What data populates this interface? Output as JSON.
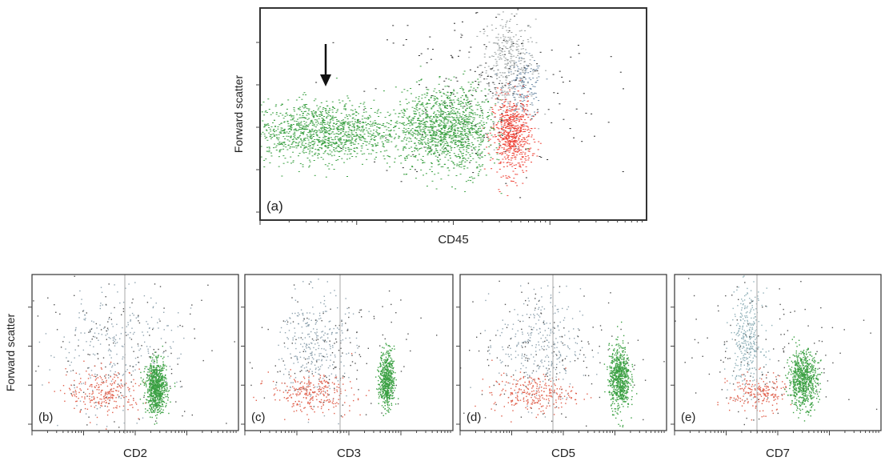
{
  "chart_data": [
    {
      "type": "scatter",
      "panel_label": "(a)",
      "xlabel": "CD45",
      "ylabel": "Forward scatter",
      "x_scale": "log",
      "annotation": "arrow pointing to the low-CD45 green population",
      "grid": false,
      "series": [
        {
          "color": "#3aa042",
          "clusters": [
            {
              "cx": 0.16,
              "cy": 0.42,
              "sx": 0.1,
              "sy": 0.07,
              "n": 1300
            },
            {
              "cx": 0.43,
              "cy": 0.43,
              "sx": 0.04,
              "sy": 0.09,
              "n": 550
            },
            {
              "cx": 0.52,
              "cy": 0.43,
              "sx": 0.04,
              "sy": 0.1,
              "n": 750
            }
          ]
        },
        {
          "color": "#ee4438",
          "clusters": [
            {
              "cx": 0.65,
              "cy": 0.4,
              "sx": 0.025,
              "sy": 0.09,
              "n": 650
            }
          ]
        },
        {
          "color": "#9aa0a0",
          "clusters": [
            {
              "cx": 0.64,
              "cy": 0.74,
              "sx": 0.035,
              "sy": 0.12,
              "n": 380
            }
          ]
        },
        {
          "color": "#6e8aa5",
          "clusters": [
            {
              "cx": 0.68,
              "cy": 0.62,
              "sx": 0.025,
              "sy": 0.07,
              "n": 150
            }
          ]
        },
        {
          "color": "#2a2a2a",
          "clusters": [
            {
              "cx": 0.58,
              "cy": 0.6,
              "sx": 0.15,
              "sy": 0.22,
              "n": 200
            }
          ]
        }
      ]
    },
    {
      "type": "scatter",
      "panel_label": "(b)",
      "xlabel": "CD2",
      "ylabel": "Forward scatter",
      "x_scale": "log",
      "grid": false,
      "series": [
        {
          "color": "#3aa042",
          "clusters": [
            {
              "cx": 0.6,
              "cy": 0.28,
              "sx": 0.025,
              "sy": 0.08,
              "n": 800
            }
          ]
        },
        {
          "color": "#e0604c",
          "clusters": [
            {
              "cx": 0.35,
              "cy": 0.25,
              "sx": 0.09,
              "sy": 0.07,
              "n": 240
            }
          ]
        },
        {
          "color": "#90a4b0",
          "clusters": [
            {
              "cx": 0.38,
              "cy": 0.52,
              "sx": 0.16,
              "sy": 0.2,
              "n": 260
            }
          ]
        },
        {
          "color": "#555555",
          "clusters": [
            {
              "cx": 0.45,
              "cy": 0.5,
              "sx": 0.25,
              "sy": 0.25,
              "n": 150
            }
          ]
        }
      ]
    },
    {
      "type": "scatter",
      "panel_label": "(c)",
      "xlabel": "CD3",
      "ylabel": "",
      "x_scale": "log",
      "grid": false,
      "series": [
        {
          "color": "#3aa042",
          "clusters": [
            {
              "cx": 0.68,
              "cy": 0.33,
              "sx": 0.018,
              "sy": 0.09,
              "n": 550
            }
          ]
        },
        {
          "color": "#e0604c",
          "clusters": [
            {
              "cx": 0.32,
              "cy": 0.24,
              "sx": 0.1,
              "sy": 0.06,
              "n": 260
            }
          ]
        },
        {
          "color": "#90a4b0",
          "clusters": [
            {
              "cx": 0.33,
              "cy": 0.55,
              "sx": 0.08,
              "sy": 0.18,
              "n": 300
            }
          ]
        },
        {
          "color": "#555555",
          "clusters": [
            {
              "cx": 0.4,
              "cy": 0.5,
              "sx": 0.22,
              "sy": 0.25,
              "n": 150
            }
          ]
        }
      ]
    },
    {
      "type": "scatter",
      "panel_label": "(d)",
      "xlabel": "CD5",
      "ylabel": "",
      "x_scale": "log",
      "grid": false,
      "series": [
        {
          "color": "#3aa042",
          "clusters": [
            {
              "cx": 0.77,
              "cy": 0.34,
              "sx": 0.025,
              "sy": 0.1,
              "n": 700
            }
          ]
        },
        {
          "color": "#e0604c",
          "clusters": [
            {
              "cx": 0.35,
              "cy": 0.24,
              "sx": 0.1,
              "sy": 0.06,
              "n": 260
            }
          ]
        },
        {
          "color": "#90a4b0",
          "clusters": [
            {
              "cx": 0.38,
              "cy": 0.55,
              "sx": 0.1,
              "sy": 0.18,
              "n": 300
            }
          ]
        },
        {
          "color": "#555555",
          "clusters": [
            {
              "cx": 0.45,
              "cy": 0.5,
              "sx": 0.25,
              "sy": 0.25,
              "n": 150
            }
          ]
        }
      ]
    },
    {
      "type": "scatter",
      "panel_label": "(e)",
      "xlabel": "CD7",
      "ylabel": "",
      "x_scale": "log",
      "grid": false,
      "series": [
        {
          "color": "#3aa042",
          "clusters": [
            {
              "cx": 0.62,
              "cy": 0.33,
              "sx": 0.035,
              "sy": 0.09,
              "n": 700
            }
          ]
        },
        {
          "color": "#e0604c",
          "clusters": [
            {
              "cx": 0.4,
              "cy": 0.24,
              "sx": 0.07,
              "sy": 0.06,
              "n": 200
            }
          ]
        },
        {
          "color": "#8fb0b8",
          "clusters": [
            {
              "cx": 0.35,
              "cy": 0.58,
              "sx": 0.04,
              "sy": 0.16,
              "n": 330
            }
          ]
        },
        {
          "color": "#555555",
          "clusters": [
            {
              "cx": 0.45,
              "cy": 0.5,
              "sx": 0.22,
              "sy": 0.25,
              "n": 130
            }
          ]
        }
      ]
    }
  ]
}
